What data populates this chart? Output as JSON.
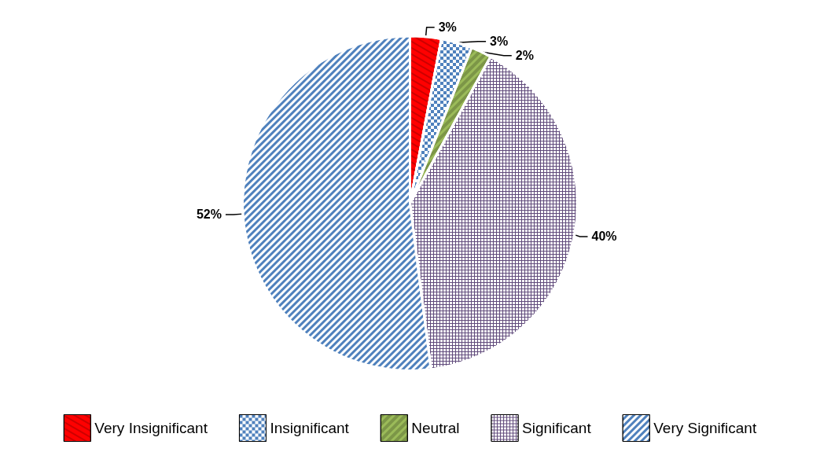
{
  "chart_data": {
    "type": "pie",
    "categories": [
      "Very Insignificant",
      "Insignificant",
      "Neutral",
      "Significant",
      "Very Significant"
    ],
    "values": [
      3,
      3,
      2,
      40,
      52
    ],
    "value_labels": [
      "3%",
      "3%",
      "2%",
      "40%",
      "52%"
    ],
    "colors": [
      "#ff0000",
      "#4f81bd",
      "#9bbb59",
      "#604a7b",
      "#4f81bd"
    ],
    "legend": "bottom"
  }
}
